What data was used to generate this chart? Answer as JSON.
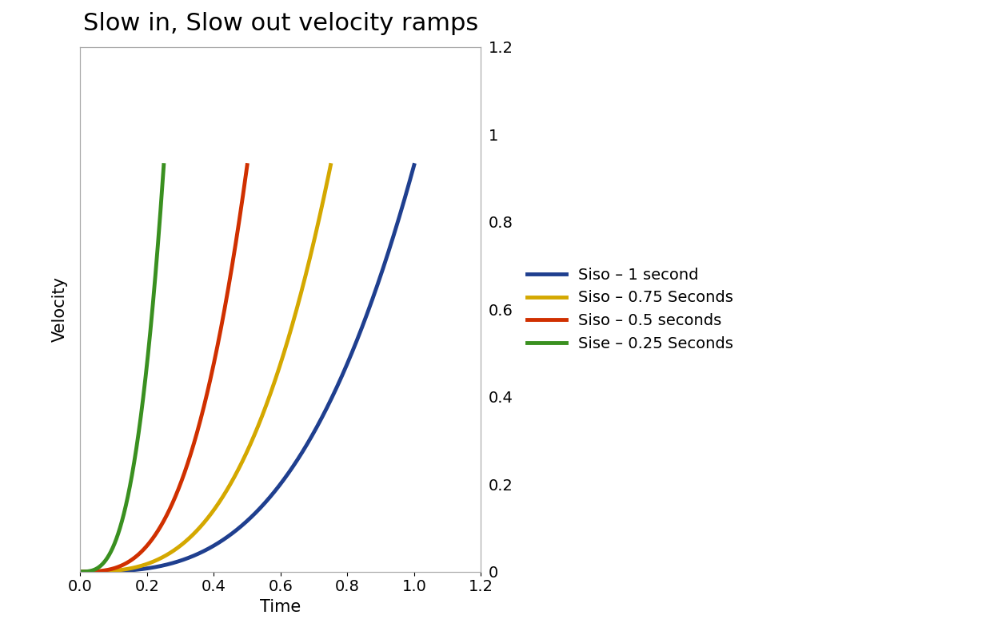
{
  "title": "Slow in, Slow out velocity ramps",
  "xlabel": "Time",
  "ylabel": "Velocity",
  "xlim": [
    0,
    1.2
  ],
  "ylim": [
    0,
    1.2
  ],
  "xticks": [
    0,
    0.2,
    0.4,
    0.6,
    0.8,
    1.0,
    1.2
  ],
  "yticks": [
    0,
    0.2,
    0.4,
    0.6,
    0.8,
    1.0,
    1.2
  ],
  "series": [
    {
      "label": "Siso – 1 second",
      "color": "#1f3f8f",
      "duration": 1.0,
      "linewidth": 3.5
    },
    {
      "label": "Siso – 0.75 Seconds",
      "color": "#d4a800",
      "duration": 0.75,
      "linewidth": 3.5
    },
    {
      "label": "Siso – 0.5 seconds",
      "color": "#d03000",
      "duration": 0.5,
      "linewidth": 3.5
    },
    {
      "label": "Sise – 0.25 Seconds",
      "color": "#3a9020",
      "duration": 0.25,
      "linewidth": 3.5
    }
  ],
  "background_color": "#ffffff",
  "title_fontsize": 22,
  "axis_label_fontsize": 15,
  "tick_fontsize": 14,
  "legend_fontsize": 14,
  "exponent": 3.0,
  "peak_value": 0.93
}
